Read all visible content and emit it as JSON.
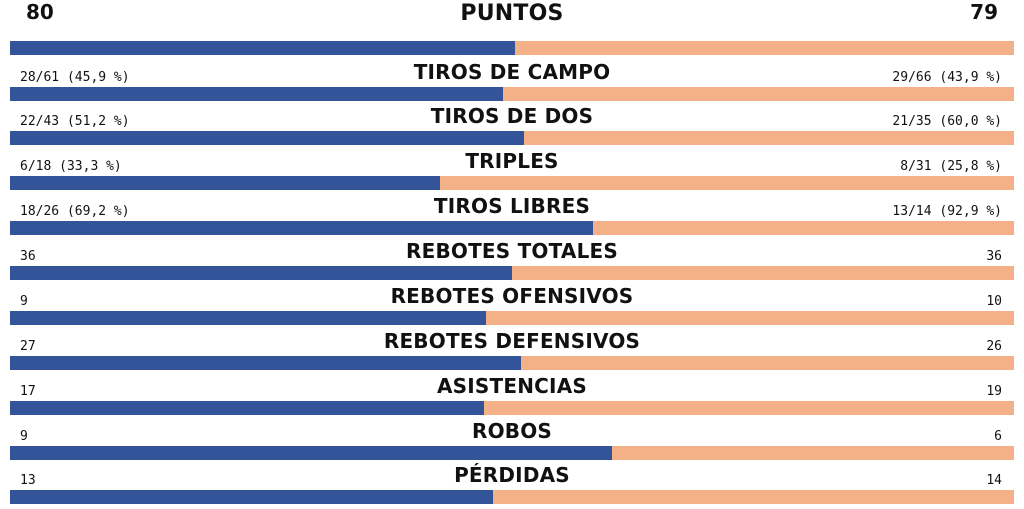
{
  "colors": {
    "home": "#345499",
    "away": "#F4B188"
  },
  "chart_data": {
    "type": "bar",
    "title": "",
    "stats": [
      {
        "label": "PUNTOS",
        "home": "80",
        "away": "79",
        "home_value": 80,
        "away_value": 79
      },
      {
        "label": "TIROS DE CAMPO",
        "home": "28/61 (45,9 %)",
        "away": "29/66 (43,9 %)",
        "home_value": 28,
        "away_value": 29
      },
      {
        "label": "TIROS DE DOS",
        "home": "22/43 (51,2 %)",
        "away": "21/35 (60,0 %)",
        "home_value": 22,
        "away_value": 21
      },
      {
        "label": "TRIPLES",
        "home": "6/18 (33,3 %)",
        "away": "8/31 (25,8 %)",
        "home_value": 6,
        "away_value": 8
      },
      {
        "label": "TIROS LIBRES",
        "home": "18/26 (69,2 %)",
        "away": "13/14 (92,9 %)",
        "home_value": 18,
        "away_value": 13
      },
      {
        "label": "REBOTES TOTALES",
        "home": "36",
        "away": "36",
        "home_value": 36,
        "away_value": 36
      },
      {
        "label": "REBOTES OFENSIVOS",
        "home": "9",
        "away": "10",
        "home_value": 9,
        "away_value": 10
      },
      {
        "label": "REBOTES DEFENSIVOS",
        "home": "27",
        "away": "26",
        "home_value": 27,
        "away_value": 26
      },
      {
        "label": "ASISTENCIAS",
        "home": "17",
        "away": "19",
        "home_value": 17,
        "away_value": 19
      },
      {
        "label": "ROBOS",
        "home": "9",
        "away": "6",
        "home_value": 9,
        "away_value": 6
      },
      {
        "label": "PÉRDIDAS",
        "home": "13",
        "away": "14",
        "home_value": 13,
        "away_value": 14
      }
    ]
  }
}
